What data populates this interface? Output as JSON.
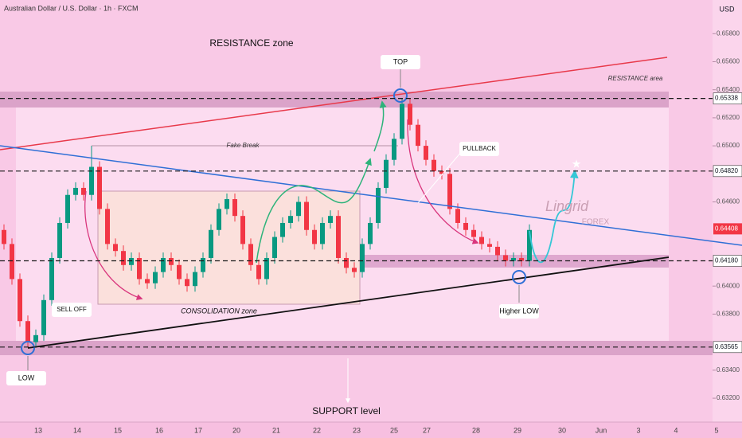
{
  "chart_data": {
    "type": "candlestick",
    "header": "Australian Dollar / U.S. Dollar · 1h · FXCM",
    "currency": "USD",
    "up_color": "#089981",
    "down_color": "#f23645",
    "ylim": [
      0.6303,
      0.6604
    ],
    "yticks": [
      {
        "value": 0.658,
        "label": "0.65800"
      },
      {
        "value": 0.656,
        "label": "0.65600"
      },
      {
        "value": 0.654,
        "label": "0.65400"
      },
      {
        "value": 0.652,
        "label": "0.65200"
      },
      {
        "value": 0.65,
        "label": "0.65000"
      },
      {
        "value": 0.646,
        "label": "0.64600"
      },
      {
        "value": 0.64,
        "label": "0.64000"
      },
      {
        "value": 0.638,
        "label": "0.63800"
      },
      {
        "value": 0.634,
        "label": "0.63400"
      },
      {
        "value": 0.632,
        "label": "0.63200"
      }
    ],
    "levels": [
      {
        "value": 0.65338,
        "label": "0.65338"
      },
      {
        "value": 0.6482,
        "label": "0.64820"
      },
      {
        "value": 0.6418,
        "label": "0.64180"
      },
      {
        "value": 0.63565,
        "label": "0.63565"
      }
    ],
    "last_price": {
      "value": 0.64408,
      "label": "0.64408"
    },
    "xtick_labels": [
      "13",
      "14",
      "15",
      "16",
      "17",
      "20",
      "21",
      "22",
      "23",
      "25",
      "27",
      "28",
      "29",
      "30",
      "Jun",
      "3",
      "4",
      "5"
    ],
    "open": [
      0.644,
      0.643,
      0.6405,
      0.6375,
      0.636,
      0.6365,
      0.639,
      0.642,
      0.6445,
      0.6465,
      0.647,
      0.6465,
      0.6485,
      0.6455,
      0.643,
      0.6425,
      0.6415,
      0.642,
      0.6405,
      0.6402,
      0.641,
      0.642,
      0.6415,
      0.6405,
      0.64,
      0.641,
      0.642,
      0.644,
      0.6455,
      0.6462,
      0.645,
      0.643,
      0.6415,
      0.6405,
      0.642,
      0.6435,
      0.6445,
      0.645,
      0.646,
      0.644,
      0.643,
      0.6445,
      0.645,
      0.642,
      0.6413,
      0.641,
      0.643,
      0.6445,
      0.647,
      0.649,
      0.6505,
      0.653,
      0.6515,
      0.65,
      0.649,
      0.6482,
      0.648,
      0.6455,
      0.6445,
      0.644,
      0.6435,
      0.643,
      0.6428,
      0.6422,
      0.6418,
      0.642,
      0.6418
    ],
    "high": [
      0.6444,
      0.6434,
      0.6409,
      0.6379,
      0.6369,
      0.6394,
      0.6424,
      0.6449,
      0.6469,
      0.6474,
      0.6474,
      0.65,
      0.6489,
      0.6459,
      0.6434,
      0.6429,
      0.6424,
      0.6424,
      0.6409,
      0.6414,
      0.6424,
      0.6424,
      0.6419,
      0.6409,
      0.6414,
      0.6424,
      0.6444,
      0.6459,
      0.6466,
      0.6466,
      0.6454,
      0.6434,
      0.6419,
      0.6424,
      0.6439,
      0.6449,
      0.6454,
      0.6464,
      0.6464,
      0.6444,
      0.6449,
      0.6454,
      0.6454,
      0.6424,
      0.6417,
      0.6434,
      0.6449,
      0.6474,
      0.6494,
      0.6509,
      0.65338,
      0.6534,
      0.6519,
      0.6504,
      0.6494,
      0.6486,
      0.6484,
      0.6459,
      0.6449,
      0.6444,
      0.6439,
      0.6434,
      0.6432,
      0.6426,
      0.6424,
      0.6424,
      0.6444
    ],
    "low": [
      0.6426,
      0.6401,
      0.6371,
      0.63565,
      0.6356,
      0.6361,
      0.6386,
      0.6416,
      0.6441,
      0.6461,
      0.6461,
      0.6461,
      0.6451,
      0.6426,
      0.6421,
      0.6411,
      0.6411,
      0.6401,
      0.6398,
      0.6398,
      0.6406,
      0.6411,
      0.6401,
      0.6396,
      0.6396,
      0.6406,
      0.6416,
      0.6436,
      0.6451,
      0.6446,
      0.6426,
      0.6411,
      0.6401,
      0.6401,
      0.6416,
      0.6431,
      0.6441,
      0.6446,
      0.6436,
      0.6426,
      0.6426,
      0.6441,
      0.6416,
      0.6409,
      0.6406,
      0.6406,
      0.6426,
      0.6441,
      0.6466,
      0.6486,
      0.6501,
      0.6511,
      0.6496,
      0.6486,
      0.6478,
      0.6476,
      0.6451,
      0.6441,
      0.6436,
      0.6431,
      0.6426,
      0.6424,
      0.6418,
      0.6414,
      0.6414,
      0.6414,
      0.6414
    ],
    "close": [
      0.643,
      0.6405,
      0.6375,
      0.636,
      0.6365,
      0.639,
      0.642,
      0.6445,
      0.6465,
      0.647,
      0.6465,
      0.6485,
      0.6455,
      0.643,
      0.6425,
      0.6415,
      0.642,
      0.6405,
      0.6402,
      0.641,
      0.642,
      0.6415,
      0.6405,
      0.64,
      0.641,
      0.642,
      0.644,
      0.6455,
      0.6462,
      0.645,
      0.643,
      0.6415,
      0.6405,
      0.642,
      0.6435,
      0.6445,
      0.645,
      0.646,
      0.644,
      0.643,
      0.6445,
      0.645,
      0.642,
      0.6413,
      0.641,
      0.643,
      0.6445,
      0.647,
      0.649,
      0.6505,
      0.653,
      0.6515,
      0.65,
      0.649,
      0.6482,
      0.648,
      0.6455,
      0.6445,
      0.644,
      0.6435,
      0.643,
      0.6428,
      0.6422,
      0.6418,
      0.642,
      0.6418,
      0.644
    ],
    "annotations": [
      "RESISTANCE zone",
      "TOP",
      "RESISTANCE area",
      "Fake Break",
      "PULLBACK",
      "SELL OFF",
      "CONSOLIDATION zone",
      "Higher LOW",
      "LOW",
      "SUPPORT level",
      "Lingrid",
      "FOREX"
    ]
  }
}
